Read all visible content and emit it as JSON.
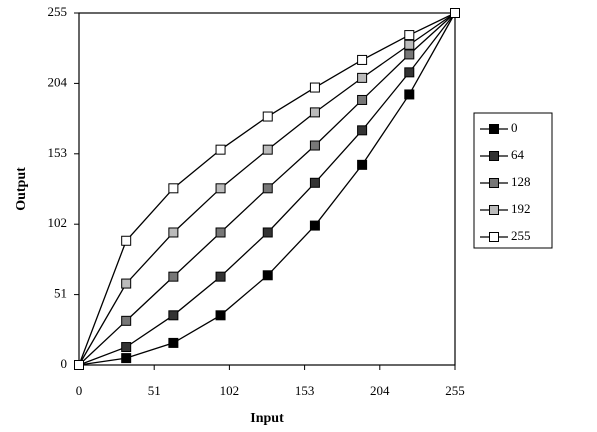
{
  "chart_data": {
    "type": "line",
    "x_label": "Input",
    "y_label": "Output",
    "x": [
      0,
      32,
      64,
      96,
      128,
      160,
      192,
      224,
      255
    ],
    "xlim": [
      0,
      255
    ],
    "xticks": [
      0,
      51,
      102,
      153,
      204,
      255
    ],
    "ylim": [
      0,
      255
    ],
    "yticks": [
      0,
      51,
      102,
      153,
      204,
      255
    ],
    "line_color": "#000000",
    "legend": "right",
    "series": [
      {
        "name": "0",
        "color": "#000000",
        "values": [
          0,
          5,
          16,
          36,
          65,
          101,
          145,
          196,
          255
        ]
      },
      {
        "name": "64",
        "color": "#333333",
        "values": [
          0,
          13,
          36,
          64,
          96,
          132,
          170,
          212,
          255
        ]
      },
      {
        "name": "128",
        "color": "#777777",
        "values": [
          0,
          32,
          64,
          96,
          128,
          159,
          192,
          225,
          255
        ]
      },
      {
        "name": "192",
        "color": "#bbbbbb",
        "values": [
          0,
          59,
          96,
          128,
          156,
          183,
          208,
          232,
          255
        ]
      },
      {
        "name": "255",
        "color": "#ffffff",
        "values": [
          0,
          90,
          128,
          156,
          180,
          201,
          221,
          239,
          255
        ]
      }
    ]
  }
}
